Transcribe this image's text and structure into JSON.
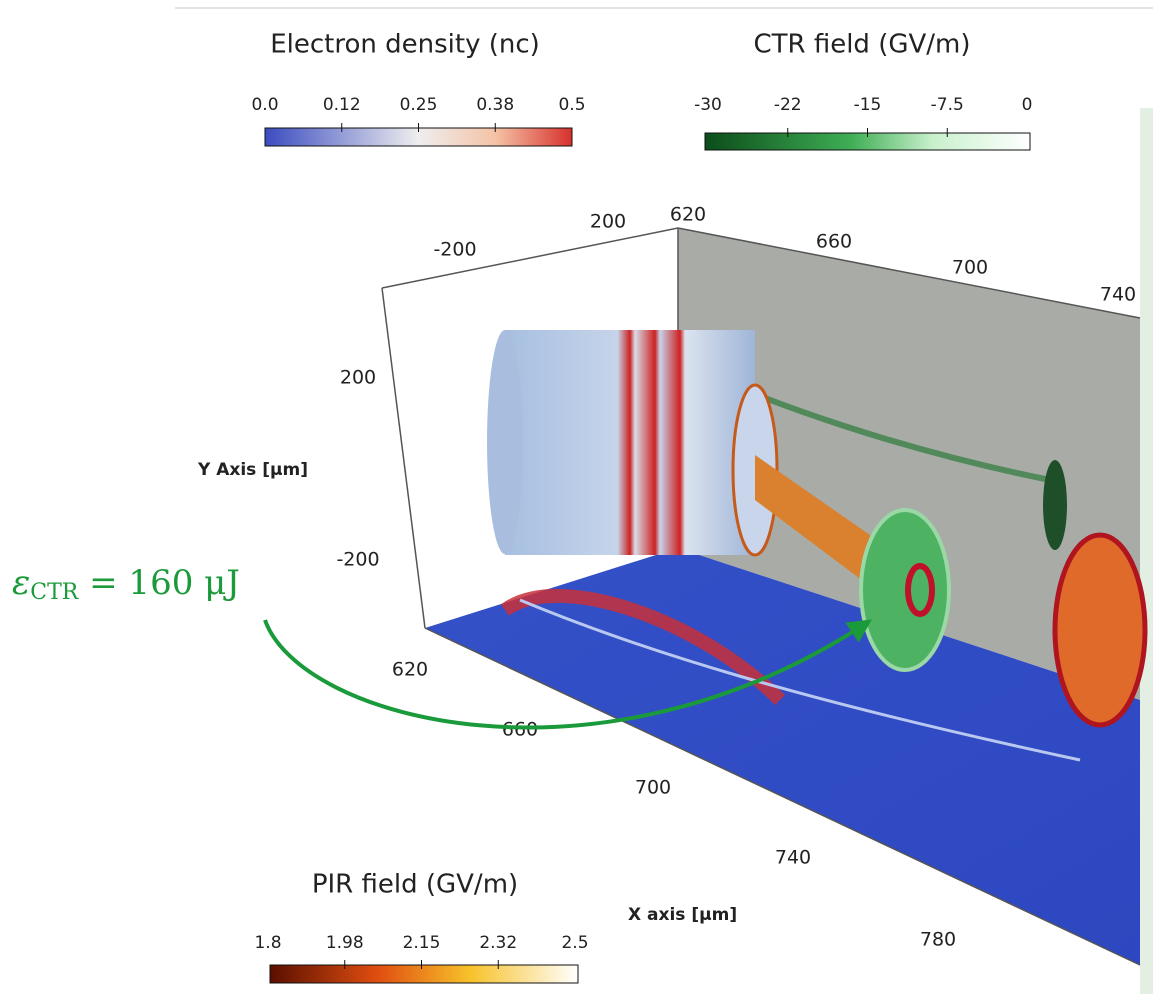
{
  "colorbars": [
    {
      "title": "Electron density (nc)",
      "ticks": [
        "0.0",
        "0.12",
        "0.25",
        "0.38",
        "0.5"
      ]
    },
    {
      "title": "CTR field (GV/m)",
      "ticks": [
        "-30",
        "-22",
        "-15",
        "-7.5",
        "0"
      ]
    },
    {
      "title": "PIR field (GV/m)",
      "ticks": [
        "1.8",
        "1.98",
        "2.15",
        "2.32",
        "2.5"
      ]
    }
  ],
  "axes": {
    "y_title": "Y Axis [µm]",
    "y_ticks": [
      "200",
      "-200"
    ],
    "z_ticks": [
      "200",
      "-200"
    ],
    "back_x_ticks": [
      "620",
      "660",
      "700",
      "740"
    ],
    "x_title": "X axis [µm]",
    "x_ticks": [
      "620",
      "660",
      "700",
      "740",
      "780"
    ]
  },
  "annotation": {
    "symbol": "ε",
    "subscript": "CTR",
    "rest": " = 160 μJ"
  }
}
